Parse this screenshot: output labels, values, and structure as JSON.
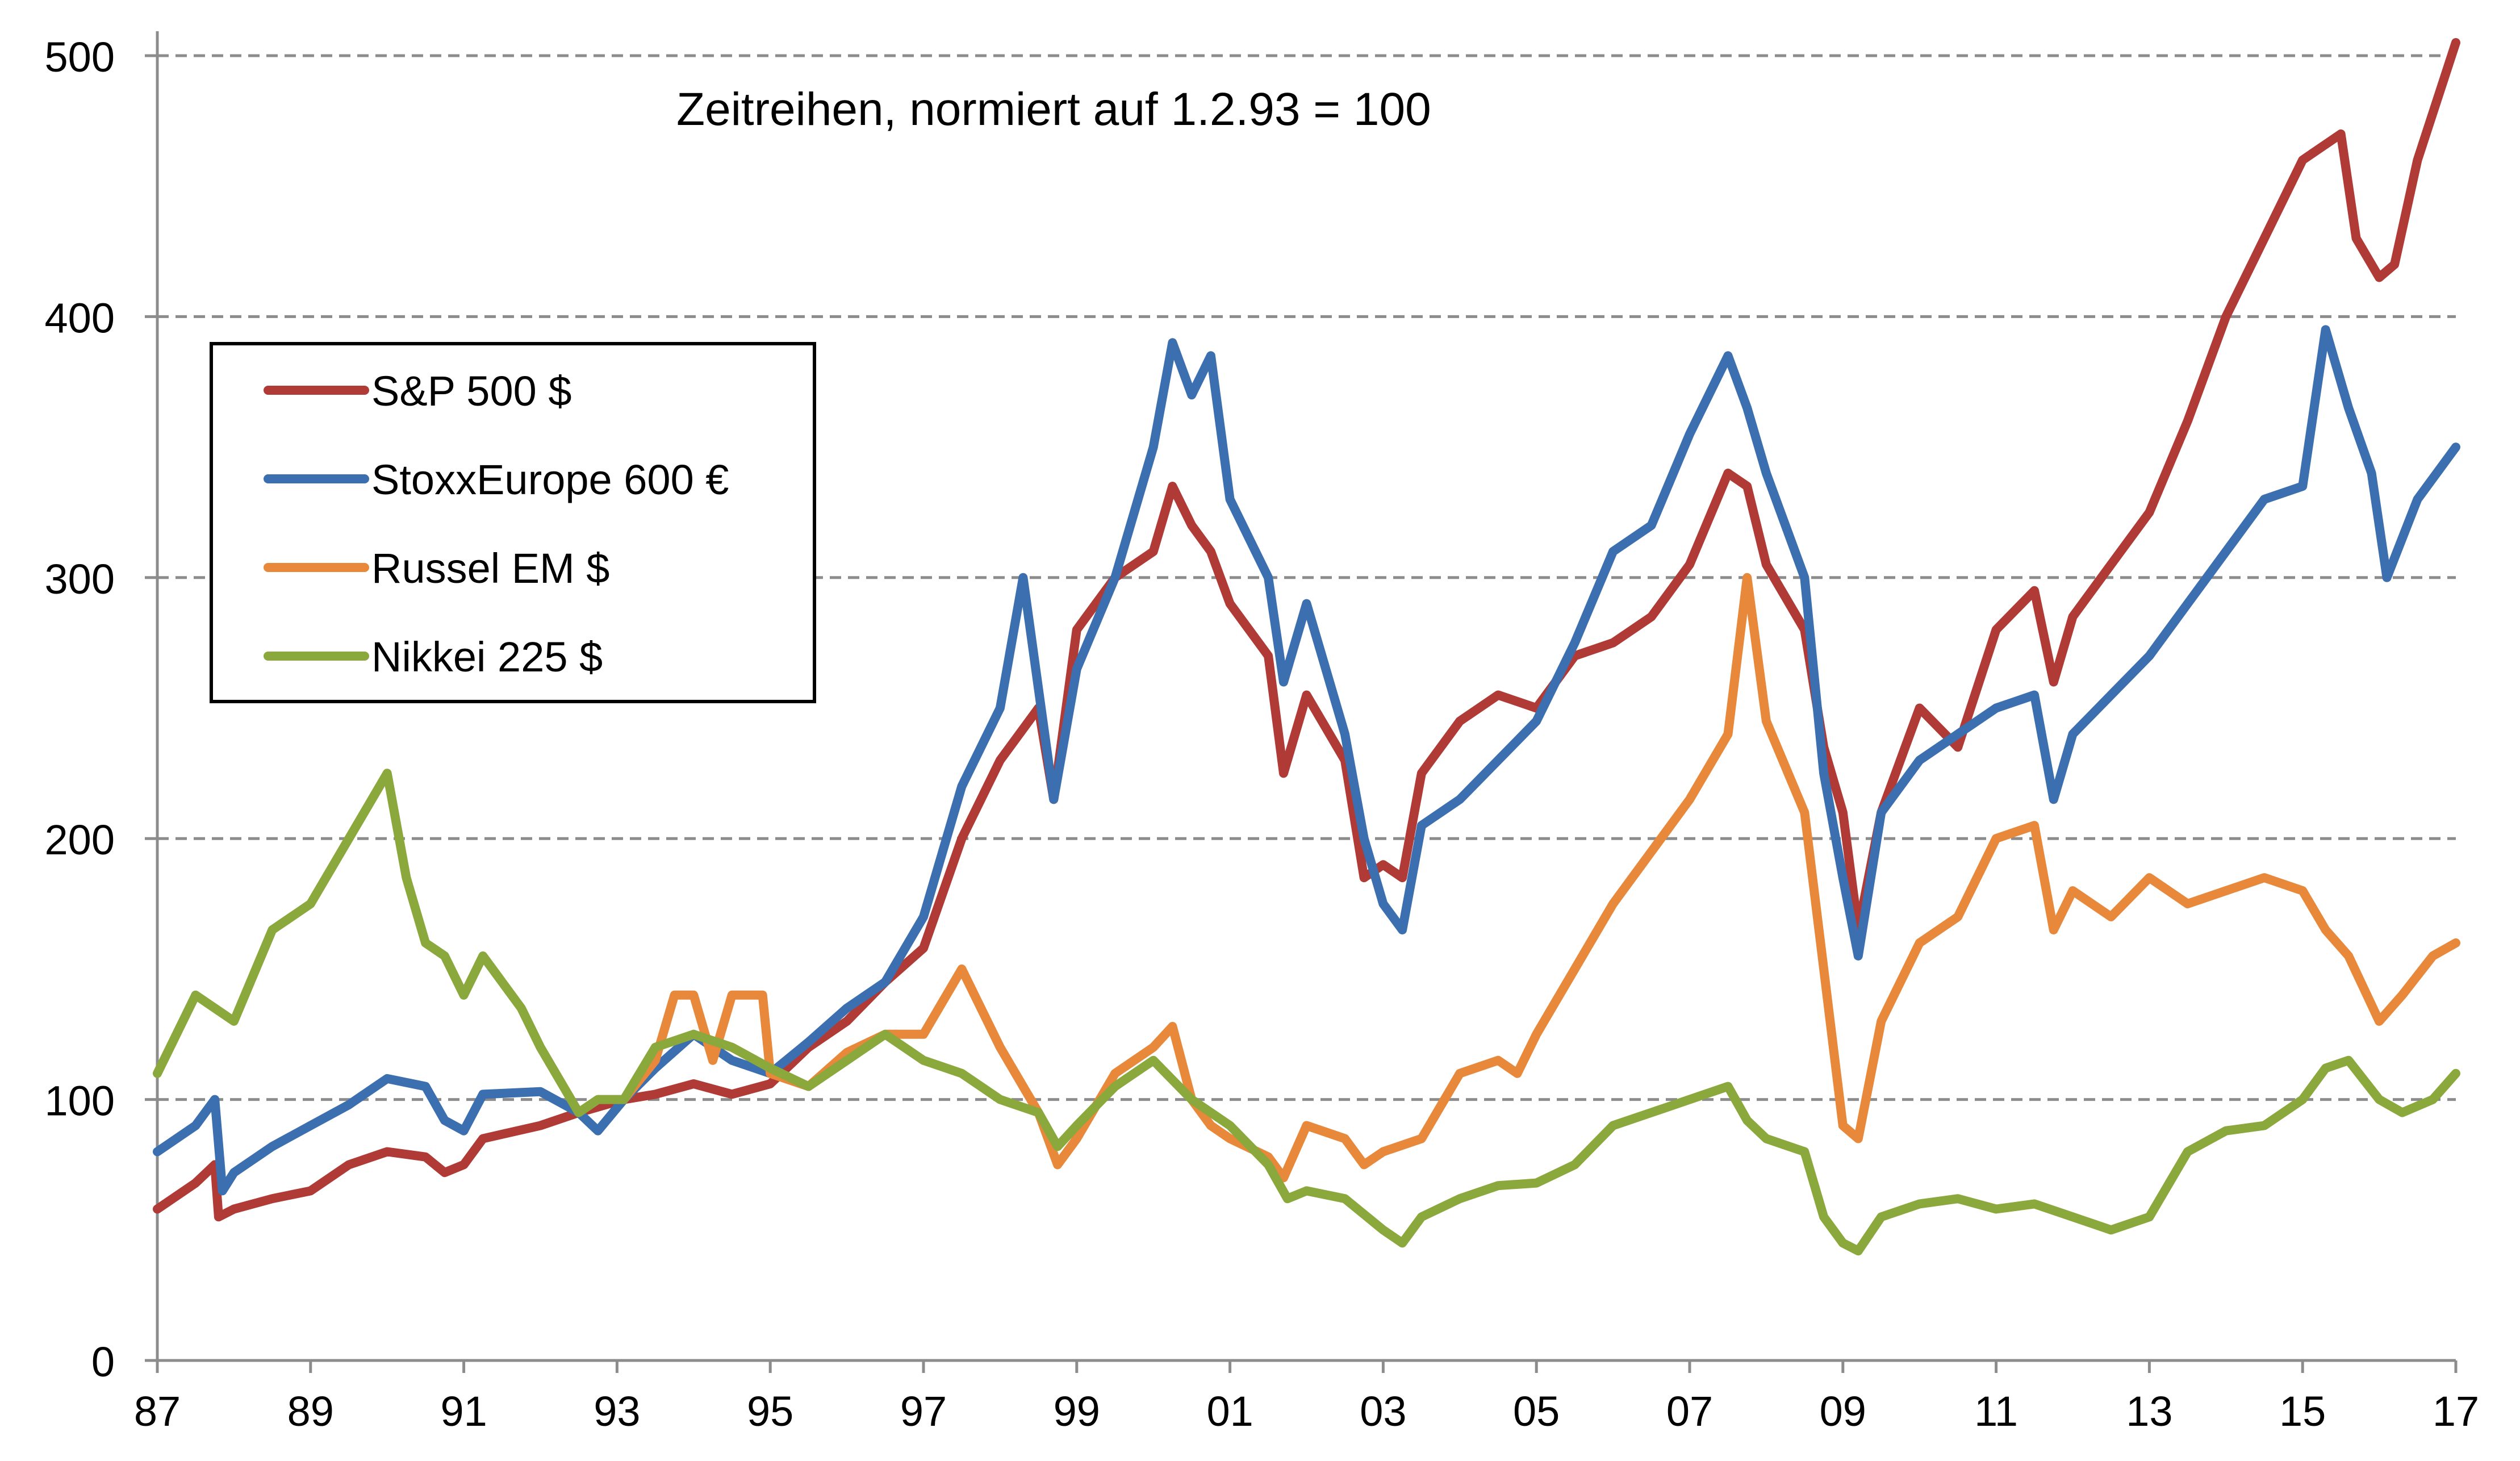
{
  "chart_data": {
    "type": "line",
    "title": "Zeitreihen,  normiert auf 1.2.93 = 100",
    "xlabel": "",
    "ylabel": "",
    "xlim": [
      1987,
      2017
    ],
    "ylim": [
      0,
      500
    ],
    "x_ticks": [
      {
        "value": 1987,
        "label": "87"
      },
      {
        "value": 1989,
        "label": "89"
      },
      {
        "value": 1991,
        "label": "91"
      },
      {
        "value": 1993,
        "label": "93"
      },
      {
        "value": 1995,
        "label": "95"
      },
      {
        "value": 1997,
        "label": "97"
      },
      {
        "value": 1999,
        "label": "99"
      },
      {
        "value": 2001,
        "label": "01"
      },
      {
        "value": 2003,
        "label": "03"
      },
      {
        "value": 2005,
        "label": "05"
      },
      {
        "value": 2007,
        "label": "07"
      },
      {
        "value": 2009,
        "label": "09"
      },
      {
        "value": 2011,
        "label": "11"
      },
      {
        "value": 2013,
        "label": "13"
      },
      {
        "value": 2015,
        "label": "15"
      },
      {
        "value": 2017,
        "label": "17"
      }
    ],
    "y_ticks": [
      {
        "value": 0,
        "label": "0"
      },
      {
        "value": 100,
        "label": "100"
      },
      {
        "value": 200,
        "label": "200"
      },
      {
        "value": 300,
        "label": "300"
      },
      {
        "value": 400,
        "label": "400"
      },
      {
        "value": 500,
        "label": "500"
      }
    ],
    "grid": "horizontal dashed",
    "legend_position": "upper-left",
    "series": [
      {
        "name": "S&P 500  $",
        "color": "#b03a35",
        "points": [
          [
            1987.0,
            58
          ],
          [
            1987.5,
            68
          ],
          [
            1987.75,
            75
          ],
          [
            1987.8,
            55
          ],
          [
            1988.0,
            58
          ],
          [
            1988.5,
            62
          ],
          [
            1989.0,
            65
          ],
          [
            1989.5,
            75
          ],
          [
            1990.0,
            80
          ],
          [
            1990.5,
            78
          ],
          [
            1990.75,
            72
          ],
          [
            1991.0,
            75
          ],
          [
            1991.25,
            85
          ],
          [
            1992.0,
            90
          ],
          [
            1992.5,
            95
          ],
          [
            1993.09,
            100
          ],
          [
            1993.5,
            102
          ],
          [
            1994.0,
            106
          ],
          [
            1994.5,
            102
          ],
          [
            1995.0,
            106
          ],
          [
            1995.5,
            120
          ],
          [
            1996.0,
            130
          ],
          [
            1996.5,
            145
          ],
          [
            1997.0,
            158
          ],
          [
            1997.5,
            200
          ],
          [
            1998.0,
            230
          ],
          [
            1998.5,
            250
          ],
          [
            1998.7,
            215
          ],
          [
            1999.0,
            280
          ],
          [
            1999.5,
            300
          ],
          [
            2000.0,
            310
          ],
          [
            2000.25,
            335
          ],
          [
            2000.5,
            320
          ],
          [
            2000.75,
            310
          ],
          [
            2001.0,
            290
          ],
          [
            2001.5,
            270
          ],
          [
            2001.7,
            225
          ],
          [
            2002.0,
            255
          ],
          [
            2002.5,
            230
          ],
          [
            2002.75,
            185
          ],
          [
            2003.0,
            190
          ],
          [
            2003.25,
            185
          ],
          [
            2003.5,
            225
          ],
          [
            2004.0,
            245
          ],
          [
            2004.5,
            255
          ],
          [
            2005.0,
            250
          ],
          [
            2005.5,
            270
          ],
          [
            2006.0,
            275
          ],
          [
            2006.5,
            285
          ],
          [
            2007.0,
            305
          ],
          [
            2007.5,
            340
          ],
          [
            2007.75,
            335
          ],
          [
            2008.0,
            305
          ],
          [
            2008.5,
            280
          ],
          [
            2008.75,
            235
          ],
          [
            2009.0,
            210
          ],
          [
            2009.2,
            165
          ],
          [
            2009.5,
            210
          ],
          [
            2010.0,
            250
          ],
          [
            2010.5,
            235
          ],
          [
            2011.0,
            280
          ],
          [
            2011.5,
            295
          ],
          [
            2011.75,
            260
          ],
          [
            2012.0,
            285
          ],
          [
            2012.5,
            305
          ],
          [
            2013.0,
            325
          ],
          [
            2013.5,
            360
          ],
          [
            2014.0,
            400
          ],
          [
            2014.5,
            430
          ],
          [
            2015.0,
            460
          ],
          [
            2015.5,
            470
          ],
          [
            2015.7,
            430
          ],
          [
            2016.0,
            415
          ],
          [
            2016.2,
            420
          ],
          [
            2016.5,
            460
          ],
          [
            2017.0,
            505
          ]
        ]
      },
      {
        "name": "StoxxEurope 600  €",
        "color": "#3c6fb0",
        "points": [
          [
            1987.0,
            80
          ],
          [
            1987.5,
            90
          ],
          [
            1987.75,
            100
          ],
          [
            1987.85,
            65
          ],
          [
            1988.0,
            72
          ],
          [
            1988.5,
            82
          ],
          [
            1989.0,
            90
          ],
          [
            1989.5,
            98
          ],
          [
            1990.0,
            108
          ],
          [
            1990.5,
            105
          ],
          [
            1990.75,
            92
          ],
          [
            1991.0,
            88
          ],
          [
            1991.25,
            102
          ],
          [
            1992.0,
            103
          ],
          [
            1992.5,
            95
          ],
          [
            1992.75,
            88
          ],
          [
            1993.09,
            100
          ],
          [
            1993.5,
            112
          ],
          [
            1994.0,
            125
          ],
          [
            1994.5,
            115
          ],
          [
            1995.0,
            110
          ],
          [
            1995.5,
            122
          ],
          [
            1996.0,
            135
          ],
          [
            1996.5,
            145
          ],
          [
            1997.0,
            170
          ],
          [
            1997.5,
            220
          ],
          [
            1998.0,
            250
          ],
          [
            1998.3,
            300
          ],
          [
            1998.7,
            215
          ],
          [
            1999.0,
            265
          ],
          [
            1999.5,
            300
          ],
          [
            2000.0,
            350
          ],
          [
            2000.25,
            390
          ],
          [
            2000.5,
            370
          ],
          [
            2000.75,
            385
          ],
          [
            2001.0,
            330
          ],
          [
            2001.5,
            300
          ],
          [
            2001.7,
            260
          ],
          [
            2002.0,
            290
          ],
          [
            2002.5,
            240
          ],
          [
            2002.75,
            200
          ],
          [
            2003.0,
            175
          ],
          [
            2003.25,
            165
          ],
          [
            2003.5,
            205
          ],
          [
            2004.0,
            215
          ],
          [
            2004.5,
            230
          ],
          [
            2005.0,
            245
          ],
          [
            2005.5,
            275
          ],
          [
            2006.0,
            310
          ],
          [
            2006.5,
            320
          ],
          [
            2007.0,
            355
          ],
          [
            2007.5,
            385
          ],
          [
            2007.75,
            365
          ],
          [
            2008.0,
            340
          ],
          [
            2008.5,
            300
          ],
          [
            2008.75,
            225
          ],
          [
            2009.0,
            185
          ],
          [
            2009.2,
            155
          ],
          [
            2009.5,
            210
          ],
          [
            2010.0,
            230
          ],
          [
            2010.5,
            240
          ],
          [
            2011.0,
            250
          ],
          [
            2011.5,
            255
          ],
          [
            2011.75,
            215
          ],
          [
            2012.0,
            240
          ],
          [
            2012.5,
            255
          ],
          [
            2013.0,
            270
          ],
          [
            2013.5,
            290
          ],
          [
            2014.0,
            310
          ],
          [
            2014.5,
            330
          ],
          [
            2015.0,
            335
          ],
          [
            2015.3,
            395
          ],
          [
            2015.6,
            365
          ],
          [
            2015.9,
            340
          ],
          [
            2016.1,
            300
          ],
          [
            2016.5,
            330
          ],
          [
            2017.0,
            350
          ]
        ]
      },
      {
        "name": "Russel EM  $",
        "color": "#e8883a",
        "points": [
          [
            1993.09,
            100
          ],
          [
            1993.5,
            115
          ],
          [
            1993.75,
            140
          ],
          [
            1994.0,
            140
          ],
          [
            1994.25,
            115
          ],
          [
            1994.5,
            140
          ],
          [
            1994.9,
            140
          ],
          [
            1995.0,
            110
          ],
          [
            1995.5,
            105
          ],
          [
            1996.0,
            118
          ],
          [
            1996.5,
            125
          ],
          [
            1997.0,
            125
          ],
          [
            1997.5,
            150
          ],
          [
            1998.0,
            120
          ],
          [
            1998.5,
            95
          ],
          [
            1998.75,
            75
          ],
          [
            1999.0,
            85
          ],
          [
            1999.5,
            110
          ],
          [
            2000.0,
            120
          ],
          [
            2000.25,
            128
          ],
          [
            2000.5,
            100
          ],
          [
            2000.75,
            90
          ],
          [
            2001.0,
            85
          ],
          [
            2001.5,
            78
          ],
          [
            2001.7,
            70
          ],
          [
            2002.0,
            90
          ],
          [
            2002.5,
            85
          ],
          [
            2002.75,
            75
          ],
          [
            2003.0,
            80
          ],
          [
            2003.5,
            85
          ],
          [
            2004.0,
            110
          ],
          [
            2004.5,
            115
          ],
          [
            2004.75,
            110
          ],
          [
            2005.0,
            125
          ],
          [
            2005.5,
            150
          ],
          [
            2006.0,
            175
          ],
          [
            2006.5,
            195
          ],
          [
            2007.0,
            215
          ],
          [
            2007.5,
            240
          ],
          [
            2007.75,
            300
          ],
          [
            2008.0,
            245
          ],
          [
            2008.5,
            210
          ],
          [
            2008.75,
            150
          ],
          [
            2009.0,
            90
          ],
          [
            2009.2,
            85
          ],
          [
            2009.5,
            130
          ],
          [
            2010.0,
            160
          ],
          [
            2010.5,
            170
          ],
          [
            2011.0,
            200
          ],
          [
            2011.5,
            205
          ],
          [
            2011.75,
            165
          ],
          [
            2012.0,
            180
          ],
          [
            2012.5,
            170
          ],
          [
            2013.0,
            185
          ],
          [
            2013.5,
            175
          ],
          [
            2014.0,
            180
          ],
          [
            2014.5,
            185
          ],
          [
            2015.0,
            180
          ],
          [
            2015.3,
            165
          ],
          [
            2015.6,
            155
          ],
          [
            2016.0,
            130
          ],
          [
            2016.3,
            140
          ],
          [
            2016.7,
            155
          ],
          [
            2017.0,
            160
          ]
        ]
      },
      {
        "name": "Nikkei 225  $",
        "color": "#8aa83c",
        "points": [
          [
            1987.0,
            110
          ],
          [
            1987.5,
            140
          ],
          [
            1988.0,
            130
          ],
          [
            1988.5,
            165
          ],
          [
            1989.0,
            175
          ],
          [
            1989.5,
            200
          ],
          [
            1990.0,
            225
          ],
          [
            1990.25,
            185
          ],
          [
            1990.5,
            160
          ],
          [
            1990.75,
            155
          ],
          [
            1991.0,
            140
          ],
          [
            1991.25,
            155
          ],
          [
            1991.75,
            135
          ],
          [
            1992.0,
            120
          ],
          [
            1992.5,
            95
          ],
          [
            1992.75,
            100
          ],
          [
            1993.09,
            100
          ],
          [
            1993.5,
            120
          ],
          [
            1994.0,
            125
          ],
          [
            1994.5,
            120
          ],
          [
            1995.0,
            112
          ],
          [
            1995.5,
            105
          ],
          [
            1996.0,
            115
          ],
          [
            1996.5,
            125
          ],
          [
            1997.0,
            115
          ],
          [
            1997.5,
            110
          ],
          [
            1998.0,
            100
          ],
          [
            1998.5,
            95
          ],
          [
            1998.75,
            82
          ],
          [
            1999.0,
            90
          ],
          [
            1999.5,
            105
          ],
          [
            2000.0,
            115
          ],
          [
            2000.5,
            100
          ],
          [
            2001.0,
            90
          ],
          [
            2001.5,
            75
          ],
          [
            2001.75,
            62
          ],
          [
            2002.0,
            65
          ],
          [
            2002.5,
            62
          ],
          [
            2003.0,
            50
          ],
          [
            2003.25,
            45
          ],
          [
            2003.5,
            55
          ],
          [
            2004.0,
            62
          ],
          [
            2004.5,
            67
          ],
          [
            2005.0,
            68
          ],
          [
            2005.5,
            75
          ],
          [
            2006.0,
            90
          ],
          [
            2006.5,
            95
          ],
          [
            2007.0,
            100
          ],
          [
            2007.5,
            105
          ],
          [
            2007.75,
            92
          ],
          [
            2008.0,
            85
          ],
          [
            2008.5,
            80
          ],
          [
            2008.75,
            55
          ],
          [
            2009.0,
            45
          ],
          [
            2009.2,
            42
          ],
          [
            2009.5,
            55
          ],
          [
            2010.0,
            60
          ],
          [
            2010.5,
            62
          ],
          [
            2011.0,
            58
          ],
          [
            2011.5,
            60
          ],
          [
            2012.0,
            55
          ],
          [
            2012.5,
            50
          ],
          [
            2013.0,
            55
          ],
          [
            2013.5,
            80
          ],
          [
            2014.0,
            88
          ],
          [
            2014.5,
            90
          ],
          [
            2015.0,
            100
          ],
          [
            2015.3,
            112
          ],
          [
            2015.6,
            115
          ],
          [
            2016.0,
            100
          ],
          [
            2016.3,
            95
          ],
          [
            2016.7,
            100
          ],
          [
            2017.0,
            110
          ]
        ]
      }
    ]
  }
}
